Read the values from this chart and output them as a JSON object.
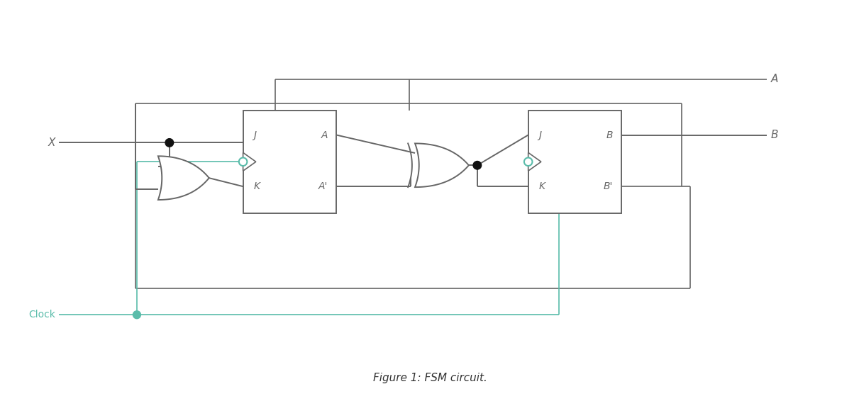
{
  "bg_color": "#ffffff",
  "line_color": "#666666",
  "teal_color": "#5abcaa",
  "dot_color": "#111111",
  "teal_dot_color": "#5abcaa",
  "fig_caption": "Figure 1: FSM circuit.",
  "caption_fontsize": 11,
  "label_color": "#222222",
  "x_label": "X",
  "a_label": "A",
  "b_label": "B",
  "clock_label": "Clock",
  "lw": 1.4,
  "lw_thin": 1.2
}
